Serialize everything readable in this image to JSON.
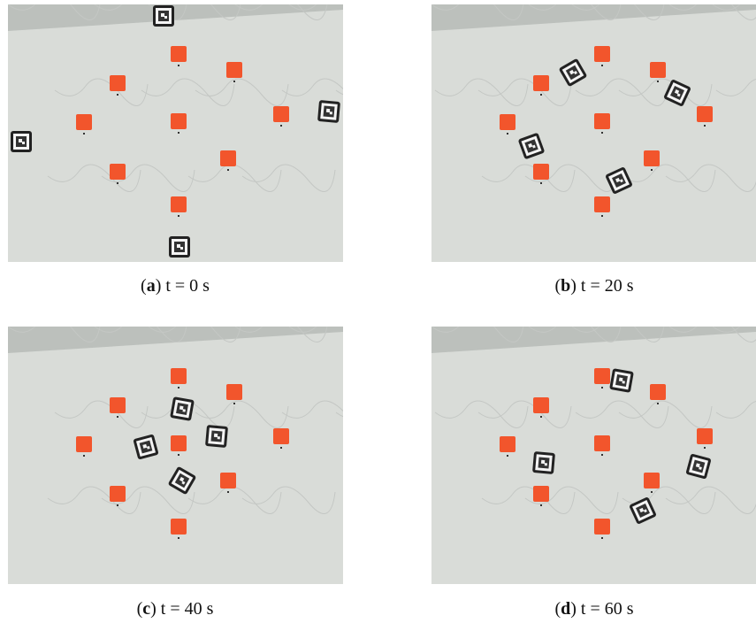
{
  "panels": [
    {
      "caption": {
        "open": "(",
        "letter": "a",
        "rest": ") t = 0 s"
      }
    },
    {
      "caption": {
        "open": "(",
        "letter": "b",
        "rest": ") t = 20 s"
      }
    },
    {
      "caption": {
        "open": "(",
        "letter": "c",
        "rest": ") t = 40 s"
      }
    },
    {
      "caption": {
        "open": "(",
        "letter": "d",
        "rest": ") t = 60 s"
      }
    }
  ]
}
